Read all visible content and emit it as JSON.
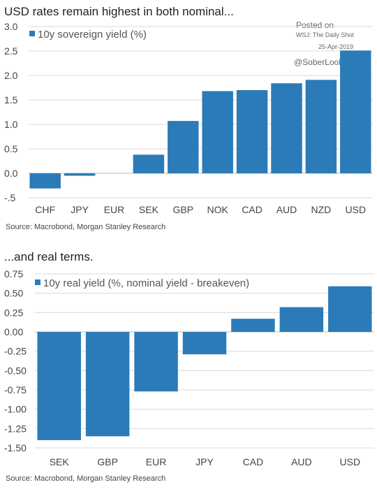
{
  "colors": {
    "bar": "#2b7bb9",
    "grid": "#d8d8d8",
    "axis": "#bbbbbb"
  },
  "watermark": {
    "posted_on": "Posted on",
    "outlet": "WSJ: The Daily Shot",
    "date": "25-Apr-2019",
    "handle": "@SoberLook"
  },
  "chart_data": [
    {
      "type": "bar",
      "title": "USD rates remain highest in both nominal...",
      "legend": "10y sovereign yield (%)",
      "source": "Source: Macrobond, Morgan Stanley Research",
      "categories": [
        "CHF",
        "JPY",
        "EUR",
        "SEK",
        "GBP",
        "NOK",
        "CAD",
        "AUD",
        "NZD",
        "USD"
      ],
      "series": [
        {
          "name": "10y sovereign yield (%)",
          "values": [
            -0.31,
            -0.05,
            0.0,
            0.38,
            1.07,
            1.68,
            1.7,
            1.84,
            1.91,
            2.51
          ]
        }
      ],
      "ylim": [
        -0.5,
        3.0
      ],
      "yticks": [
        "3.0",
        "2.5",
        "2.0",
        "1.5",
        "1.0",
        "0.5",
        "0.0",
        "-.5"
      ],
      "ytick_values": [
        3.0,
        2.5,
        2.0,
        1.5,
        1.0,
        0.5,
        0.0,
        -0.5
      ],
      "grid": true,
      "legend_position": "top-left"
    },
    {
      "type": "bar",
      "title": "...and real terms.",
      "legend": "10y real yield (%, nominal yield - breakeven)",
      "source": "Source: Macrobond, Morgan Stanley Research",
      "categories": [
        "SEK",
        "GBP",
        "EUR",
        "JPY",
        "CAD",
        "AUD",
        "USD"
      ],
      "series": [
        {
          "name": "10y real yield (%, nominal yield - breakeven)",
          "values": [
            -1.4,
            -1.35,
            -0.77,
            -0.29,
            0.17,
            0.32,
            0.59
          ]
        }
      ],
      "ylim": [
        -1.5,
        0.75
      ],
      "yticks": [
        "0.75",
        "0.50",
        "0.25",
        "0.00",
        "-0.25",
        "-0.50",
        "-0.75",
        "-1.00",
        "-1.25",
        "-1.50"
      ],
      "ytick_values": [
        0.75,
        0.5,
        0.25,
        0.0,
        -0.25,
        -0.5,
        -0.75,
        -1.0,
        -1.25,
        -1.5
      ],
      "grid": true,
      "legend_position": "top-left"
    }
  ]
}
